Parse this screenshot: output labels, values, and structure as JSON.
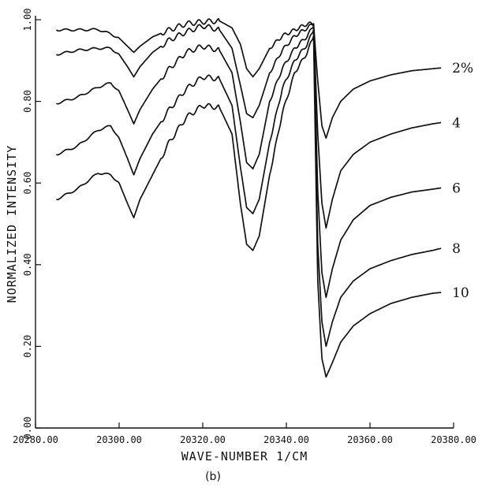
{
  "chart_data": {
    "type": "line",
    "xlabel": "WAVE-NUMBER 1/CM",
    "ylabel": "NORMALIZED INTENSITY",
    "caption": "(b)",
    "xlim": [
      20280,
      20380
    ],
    "ylim": [
      0,
      1
    ],
    "x_tick_labels": [
      "20280.00",
      "20300.00",
      "20320.00",
      "20340.00",
      "20360.00",
      "20380.00"
    ],
    "y_tick_labels": [
      "0.00",
      "0.20",
      "0.40",
      "0.60",
      "0.80",
      "1.00"
    ],
    "series": [
      {
        "name": "2%",
        "points": [
          [
            20285,
            0.975
          ],
          [
            20290,
            0.975
          ],
          [
            20295,
            0.976
          ],
          [
            20298,
            0.965
          ],
          [
            20300,
            0.955
          ],
          [
            20302,
            0.935
          ],
          [
            20303.5,
            0.92
          ],
          [
            20305,
            0.935
          ],
          [
            20308,
            0.958
          ],
          [
            20312,
            0.975
          ],
          [
            20316,
            0.99
          ],
          [
            20320,
            0.995
          ],
          [
            20324,
            0.997
          ],
          [
            20327,
            0.98
          ],
          [
            20329,
            0.94
          ],
          [
            20330.5,
            0.88
          ],
          [
            20332,
            0.86
          ],
          [
            20333.5,
            0.88
          ],
          [
            20336,
            0.93
          ],
          [
            20339,
            0.96
          ],
          [
            20342,
            0.975
          ],
          [
            20345,
            0.99
          ],
          [
            20346.5,
            0.99
          ],
          [
            20347.5,
            0.85
          ],
          [
            20348.5,
            0.74
          ],
          [
            20349.5,
            0.71
          ],
          [
            20351,
            0.76
          ],
          [
            20353,
            0.8
          ],
          [
            20356,
            0.83
          ],
          [
            20360,
            0.85
          ],
          [
            20365,
            0.865
          ],
          [
            20370,
            0.875
          ],
          [
            20375,
            0.88
          ],
          [
            20377,
            0.882
          ]
        ]
      },
      {
        "name": "4",
        "points": [
          [
            20285,
            0.915
          ],
          [
            20290,
            0.925
          ],
          [
            20295,
            0.93
          ],
          [
            20298,
            0.93
          ],
          [
            20300,
            0.915
          ],
          [
            20302,
            0.885
          ],
          [
            20303.5,
            0.86
          ],
          [
            20305,
            0.885
          ],
          [
            20308,
            0.92
          ],
          [
            20312,
            0.95
          ],
          [
            20316,
            0.97
          ],
          [
            20320,
            0.985
          ],
          [
            20324,
            0.975
          ],
          [
            20327,
            0.93
          ],
          [
            20329,
            0.84
          ],
          [
            20330.5,
            0.77
          ],
          [
            20332,
            0.76
          ],
          [
            20333.5,
            0.79
          ],
          [
            20336,
            0.87
          ],
          [
            20339,
            0.925
          ],
          [
            20342,
            0.96
          ],
          [
            20345,
            0.98
          ],
          [
            20346.5,
            0.99
          ],
          [
            20347.5,
            0.72
          ],
          [
            20348.5,
            0.55
          ],
          [
            20349.5,
            0.49
          ],
          [
            20351,
            0.56
          ],
          [
            20353,
            0.63
          ],
          [
            20356,
            0.67
          ],
          [
            20360,
            0.7
          ],
          [
            20365,
            0.72
          ],
          [
            20370,
            0.735
          ],
          [
            20375,
            0.745
          ],
          [
            20377,
            0.748
          ]
        ]
      },
      {
        "name": "6",
        "points": [
          [
            20285,
            0.795
          ],
          [
            20290,
            0.81
          ],
          [
            20295,
            0.835
          ],
          [
            20298,
            0.845
          ],
          [
            20300,
            0.825
          ],
          [
            20302,
            0.78
          ],
          [
            20303.5,
            0.745
          ],
          [
            20305,
            0.78
          ],
          [
            20308,
            0.83
          ],
          [
            20312,
            0.88
          ],
          [
            20316,
            0.92
          ],
          [
            20320,
            0.935
          ],
          [
            20324,
            0.925
          ],
          [
            20327,
            0.87
          ],
          [
            20329,
            0.75
          ],
          [
            20330.5,
            0.65
          ],
          [
            20332,
            0.635
          ],
          [
            20333.5,
            0.67
          ],
          [
            20336,
            0.8
          ],
          [
            20339,
            0.88
          ],
          [
            20342,
            0.93
          ],
          [
            20345,
            0.96
          ],
          [
            20346.5,
            0.985
          ],
          [
            20347.5,
            0.58
          ],
          [
            20348.5,
            0.38
          ],
          [
            20349.5,
            0.32
          ],
          [
            20351,
            0.39
          ],
          [
            20353,
            0.46
          ],
          [
            20356,
            0.51
          ],
          [
            20360,
            0.545
          ],
          [
            20365,
            0.565
          ],
          [
            20370,
            0.578
          ],
          [
            20375,
            0.585
          ],
          [
            20377,
            0.588
          ]
        ]
      },
      {
        "name": "8",
        "points": [
          [
            20285,
            0.67
          ],
          [
            20290,
            0.69
          ],
          [
            20295,
            0.73
          ],
          [
            20298,
            0.74
          ],
          [
            20300,
            0.71
          ],
          [
            20302,
            0.66
          ],
          [
            20303.5,
            0.62
          ],
          [
            20305,
            0.66
          ],
          [
            20308,
            0.72
          ],
          [
            20312,
            0.78
          ],
          [
            20316,
            0.83
          ],
          [
            20320,
            0.86
          ],
          [
            20324,
            0.855
          ],
          [
            20327,
            0.79
          ],
          [
            20329,
            0.64
          ],
          [
            20330.5,
            0.54
          ],
          [
            20332,
            0.525
          ],
          [
            20333.5,
            0.56
          ],
          [
            20336,
            0.7
          ],
          [
            20339,
            0.83
          ],
          [
            20342,
            0.9
          ],
          [
            20345,
            0.94
          ],
          [
            20346.5,
            0.975
          ],
          [
            20347.5,
            0.45
          ],
          [
            20348.5,
            0.26
          ],
          [
            20349.5,
            0.2
          ],
          [
            20351,
            0.26
          ],
          [
            20353,
            0.32
          ],
          [
            20356,
            0.36
          ],
          [
            20360,
            0.39
          ],
          [
            20365,
            0.41
          ],
          [
            20370,
            0.425
          ],
          [
            20375,
            0.435
          ],
          [
            20377,
            0.44
          ]
        ]
      },
      {
        "name": "10",
        "points": [
          [
            20285,
            0.56
          ],
          [
            20290,
            0.585
          ],
          [
            20295,
            0.625
          ],
          [
            20298,
            0.62
          ],
          [
            20300,
            0.6
          ],
          [
            20302,
            0.55
          ],
          [
            20303.5,
            0.515
          ],
          [
            20305,
            0.56
          ],
          [
            20308,
            0.62
          ],
          [
            20312,
            0.7
          ],
          [
            20316,
            0.76
          ],
          [
            20320,
            0.79
          ],
          [
            20324,
            0.785
          ],
          [
            20327,
            0.72
          ],
          [
            20329,
            0.55
          ],
          [
            20330.5,
            0.45
          ],
          [
            20332,
            0.435
          ],
          [
            20333.5,
            0.47
          ],
          [
            20336,
            0.62
          ],
          [
            20339,
            0.77
          ],
          [
            20342,
            0.87
          ],
          [
            20345,
            0.92
          ],
          [
            20346.5,
            0.96
          ],
          [
            20347.5,
            0.36
          ],
          [
            20348.5,
            0.17
          ],
          [
            20349.5,
            0.125
          ],
          [
            20351,
            0.16
          ],
          [
            20353,
            0.21
          ],
          [
            20356,
            0.25
          ],
          [
            20360,
            0.28
          ],
          [
            20365,
            0.305
          ],
          [
            20370,
            0.32
          ],
          [
            20375,
            0.33
          ],
          [
            20377,
            0.332
          ]
        ]
      }
    ]
  }
}
